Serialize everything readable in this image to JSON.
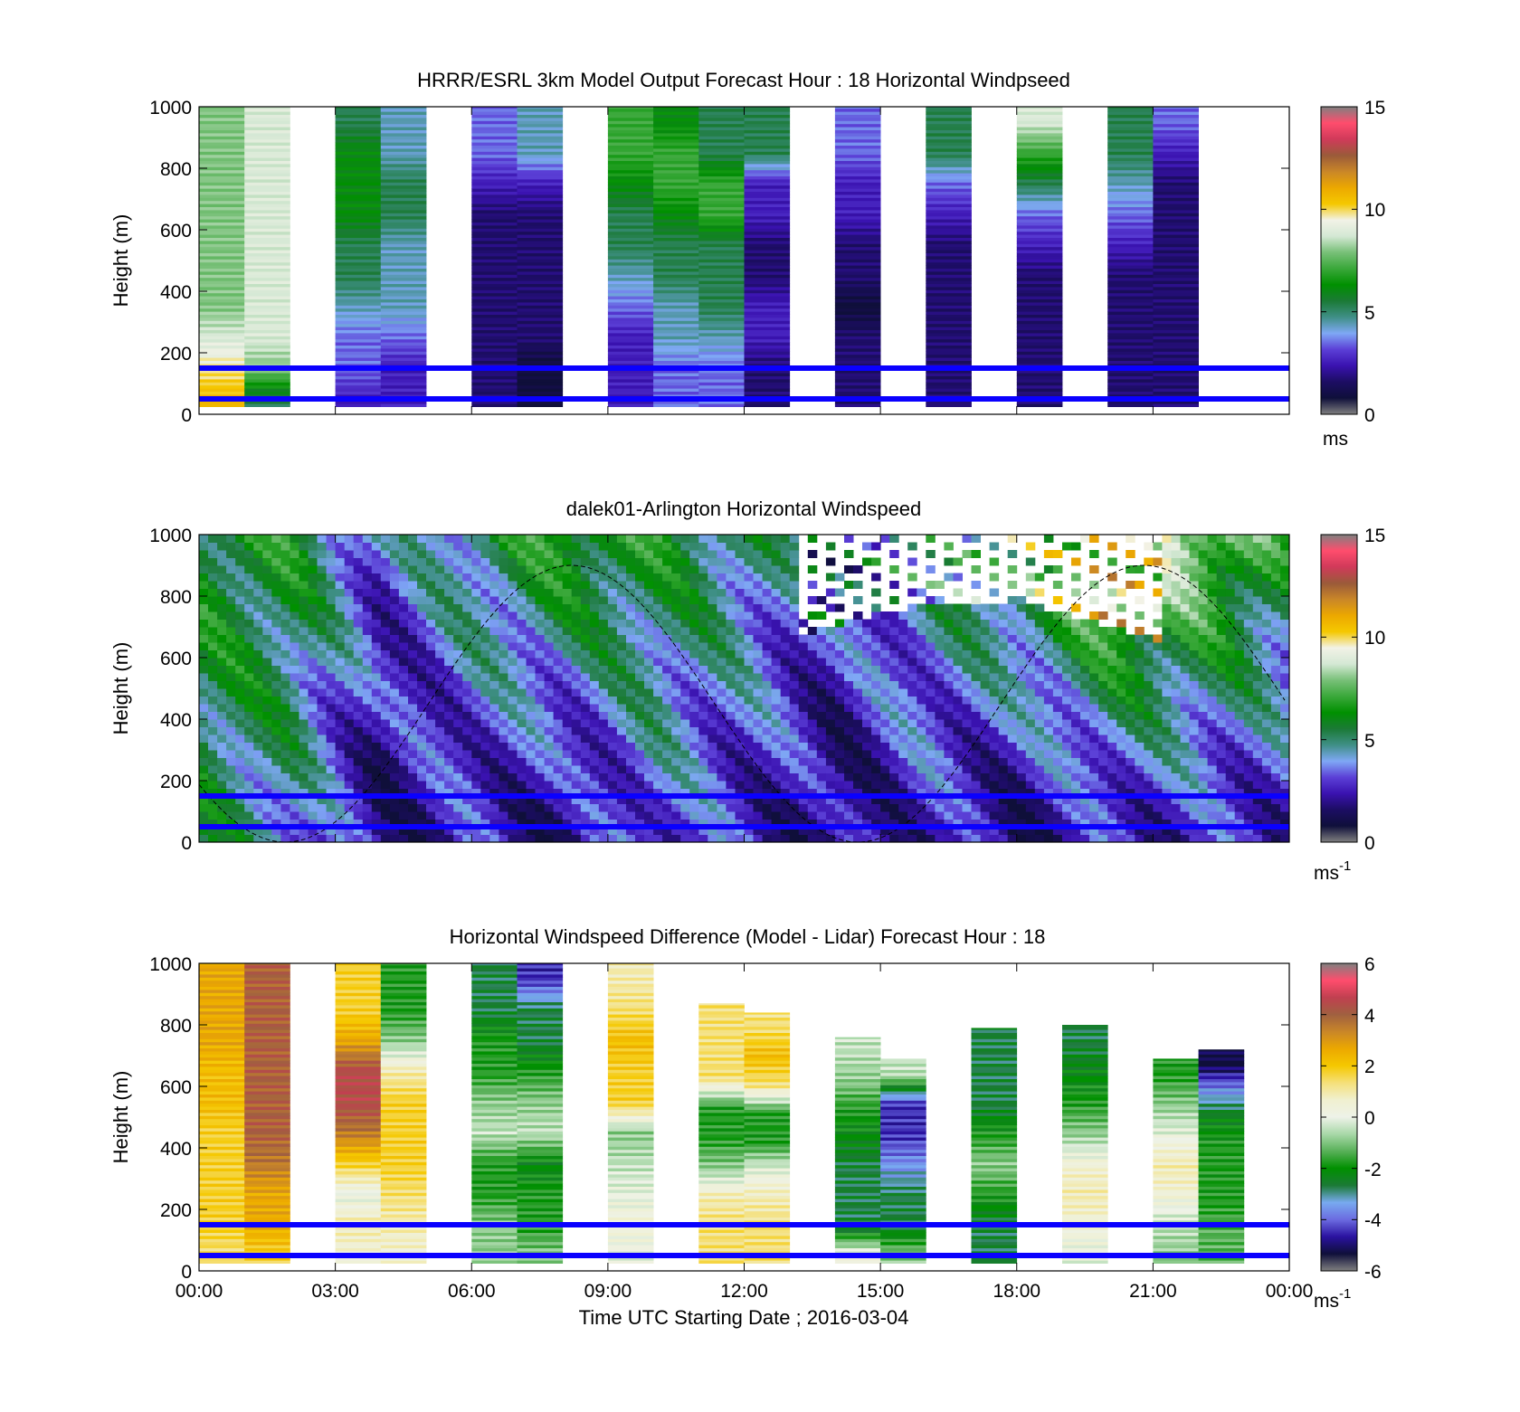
{
  "colors": {
    "reference_line": "#0a00ff",
    "speed_scale": [
      "#808080",
      "#0f0f3a",
      "#1c0d63",
      "#3a12b0",
      "#5b3fd6",
      "#7fa8f5",
      "#3f8f86",
      "#1b7a36",
      "#009000",
      "#3aa83a",
      "#78c078",
      "#d4e8d4",
      "#f2f2e6",
      "#f5c800",
      "#eca800",
      "#c98628",
      "#9a5a3a",
      "#d03a5a",
      "#ff4d6d",
      "#808080"
    ],
    "diff_scale": [
      "#808080",
      "#0f0f3a",
      "#2a12a0",
      "#6b6be0",
      "#78aaf0",
      "#1b7a36",
      "#009000",
      "#58b058",
      "#a8d8a8",
      "#eef2e8",
      "#f0f0d0",
      "#f5e07a",
      "#f5c800",
      "#eca800",
      "#c98628",
      "#a06040",
      "#c04050",
      "#ff4d6d",
      "#808080"
    ]
  },
  "chart_data": [
    {
      "type": "heatmap",
      "title": "HRRR/ESRL 3km Model Output   Forecast Hour : 18 Horizontal Windpseed",
      "ylabel": "Height (m)",
      "xlabel": "",
      "xlim": [
        "00:00",
        "00:00"
      ],
      "ylim": [
        0,
        1000
      ],
      "yticks": [
        "0",
        "200",
        "400",
        "600",
        "800",
        "1000"
      ],
      "reference_lines_m": [
        50,
        150
      ],
      "colorbar": {
        "range": [
          0,
          15
        ],
        "ticks": [
          "0",
          "5",
          "10",
          "15"
        ],
        "unit": "ms"
      },
      "profiles": [
        {
          "start_h": 0,
          "values": [
            11,
            10,
            9,
            8,
            8,
            8,
            8,
            8,
            8,
            8
          ]
        },
        {
          "start_h": 1,
          "values": [
            5,
            8,
            9,
            9,
            9,
            9,
            9,
            9,
            9,
            9
          ]
        },
        {
          "start_h": 3,
          "values": [
            2,
            3,
            3,
            4,
            5,
            5,
            6,
            6,
            6,
            5
          ]
        },
        {
          "start_h": 4,
          "values": [
            2,
            2,
            3,
            4,
            4,
            4,
            5,
            5,
            4,
            4
          ]
        },
        {
          "start_h": 6,
          "values": [
            1,
            1,
            1,
            1,
            1,
            1,
            1,
            2,
            3,
            3
          ]
        },
        {
          "start_h": 7,
          "values": [
            0,
            0,
            1,
            1,
            1,
            1,
            1,
            2,
            4,
            4
          ]
        },
        {
          "start_h": 9,
          "values": [
            2,
            2,
            2,
            3,
            4,
            5,
            5,
            6,
            7,
            7
          ]
        },
        {
          "start_h": 10,
          "values": [
            3,
            3,
            4,
            4,
            5,
            5,
            6,
            7,
            7,
            6
          ]
        },
        {
          "start_h": 11,
          "values": [
            3,
            3,
            4,
            5,
            5,
            5,
            7,
            7,
            5,
            5
          ]
        },
        {
          "start_h": 12,
          "values": [
            1,
            1,
            2,
            2,
            1,
            1,
            2,
            2,
            5,
            5
          ]
        },
        {
          "start_h": 14,
          "values": [
            1,
            1,
            1,
            0,
            1,
            1,
            2,
            2,
            3,
            3
          ]
        },
        {
          "start_h": 16,
          "values": [
            1,
            1,
            1,
            1,
            1,
            1,
            2,
            3,
            5,
            5
          ]
        },
        {
          "start_h": 18,
          "values": [
            1,
            1,
            1,
            1,
            1,
            2,
            3,
            5,
            7,
            9
          ]
        },
        {
          "start_h": 20,
          "values": [
            1,
            1,
            1,
            1,
            1,
            2,
            3,
            4,
            5,
            5
          ]
        },
        {
          "start_h": 21,
          "values": [
            1,
            1,
            1,
            1,
            1,
            1,
            1,
            1,
            2,
            3
          ]
        }
      ]
    },
    {
      "type": "heatmap",
      "title": "dalek01-Arlington  Horizontal Windspeed",
      "ylabel": "Height (m)",
      "xlabel": "",
      "xlim": [
        "00:00",
        "00:00"
      ],
      "ylim": [
        0,
        1000
      ],
      "yticks": [
        "0",
        "200",
        "400",
        "600",
        "800",
        "1000"
      ],
      "reference_lines_m": [
        50,
        150
      ],
      "colorbar": {
        "range": [
          0,
          15
        ],
        "ticks": [
          "0",
          "5",
          "10",
          "15"
        ],
        "unit": "ms",
        "unit_exponent": "-1"
      },
      "field_description_values": {
        "hours": [
          0,
          2,
          4,
          6,
          8,
          10,
          12,
          14,
          16,
          18,
          20,
          22,
          24
        ],
        "low_level_ms": [
          5,
          4,
          1,
          2,
          1,
          3,
          2,
          1,
          2,
          1,
          2,
          2,
          2
        ],
        "upper_level_ms": [
          6,
          6,
          3,
          5,
          7,
          6,
          5,
          3,
          5,
          7,
          10,
          9,
          6
        ]
      }
    },
    {
      "type": "heatmap",
      "title": "Horizontal Windspeed Difference (Model - Lidar) Forecast Hour : 18",
      "ylabel": "Height (m)",
      "xlabel": "Time UTC  Starting Date ; 2016-03-04",
      "xlim": [
        "00:00",
        "00:00"
      ],
      "xticks": [
        "00:00",
        "03:00",
        "06:00",
        "09:00",
        "12:00",
        "15:00",
        "18:00",
        "21:00",
        "00:00"
      ],
      "ylim": [
        0,
        1000
      ],
      "yticks": [
        "0",
        "200",
        "400",
        "600",
        "800",
        "1000"
      ],
      "reference_lines_m": [
        50,
        150
      ],
      "colorbar": {
        "range": [
          -6,
          6
        ],
        "ticks": [
          "-6",
          "-4",
          "-2",
          "0",
          "2",
          "4",
          "6"
        ],
        "unit": "ms",
        "unit_exponent": "-1"
      },
      "profiles": [
        {
          "start_h": 0,
          "top_m": 1000,
          "values": [
            1.5,
            2,
            2,
            2,
            2,
            2.5,
            2.5,
            3,
            3,
            3
          ]
        },
        {
          "start_h": 1,
          "top_m": 1000,
          "values": [
            2,
            3,
            3,
            4,
            4.5,
            4.5,
            4.5,
            4.5,
            4.5,
            4.5
          ]
        },
        {
          "start_h": 3,
          "top_m": 1000,
          "values": [
            0.5,
            1,
            0,
            2,
            4,
            5,
            5,
            3,
            2,
            2
          ]
        },
        {
          "start_h": 4,
          "top_m": 1000,
          "values": [
            0.5,
            1,
            1.5,
            2,
            2,
            2,
            1,
            -1,
            -2,
            -2
          ]
        },
        {
          "start_h": 6,
          "top_m": 1000,
          "values": [
            -1,
            -1,
            -2,
            -2,
            -0.5,
            -1,
            -2,
            -2,
            -3,
            -3
          ]
        },
        {
          "start_h": 7,
          "top_m": 1000,
          "values": [
            -1,
            -2,
            -2,
            -2.5,
            -0.5,
            -1,
            -2,
            -3,
            -3,
            -5
          ]
        },
        {
          "start_h": 9,
          "top_m": 1000,
          "values": [
            0,
            0.5,
            0,
            -0.5,
            -1,
            2,
            2,
            2.5,
            1.5,
            1
          ]
        },
        {
          "start_h": 11,
          "top_m": 870,
          "values": [
            1.5,
            1.5,
            1,
            -1,
            -2,
            -2,
            1.5,
            1.5,
            1.5
          ]
        },
        {
          "start_h": 12,
          "top_m": 840,
          "values": [
            1.5,
            1.5,
            1,
            0,
            -2,
            -2,
            1.5,
            2.5,
            1.5
          ]
        },
        {
          "start_h": 14,
          "top_m": 760,
          "values": [
            0.5,
            -3,
            -3,
            -3,
            -2.5,
            -2,
            -1,
            -0.5
          ]
        },
        {
          "start_h": 15,
          "top_m": 690,
          "values": [
            -1,
            -3,
            -3,
            -4,
            -5,
            -5,
            -0.5
          ]
        },
        {
          "start_h": 17,
          "top_m": 790,
          "values": [
            -3,
            -3,
            -2,
            -1,
            -2,
            -3,
            -3,
            -3
          ]
        },
        {
          "start_h": 19,
          "top_m": 800,
          "values": [
            0,
            0.5,
            1,
            0.5,
            -1,
            -2,
            -2.5,
            -3
          ]
        },
        {
          "start_h": 21,
          "top_m": 690,
          "values": [
            -1,
            -0.5,
            0.5,
            1,
            0,
            -1,
            -2
          ]
        },
        {
          "start_h": 22,
          "top_m": 720,
          "values": [
            -1.5,
            -1.5,
            -2,
            -2,
            -2,
            -2.5,
            -4,
            -6
          ]
        }
      ]
    }
  ]
}
